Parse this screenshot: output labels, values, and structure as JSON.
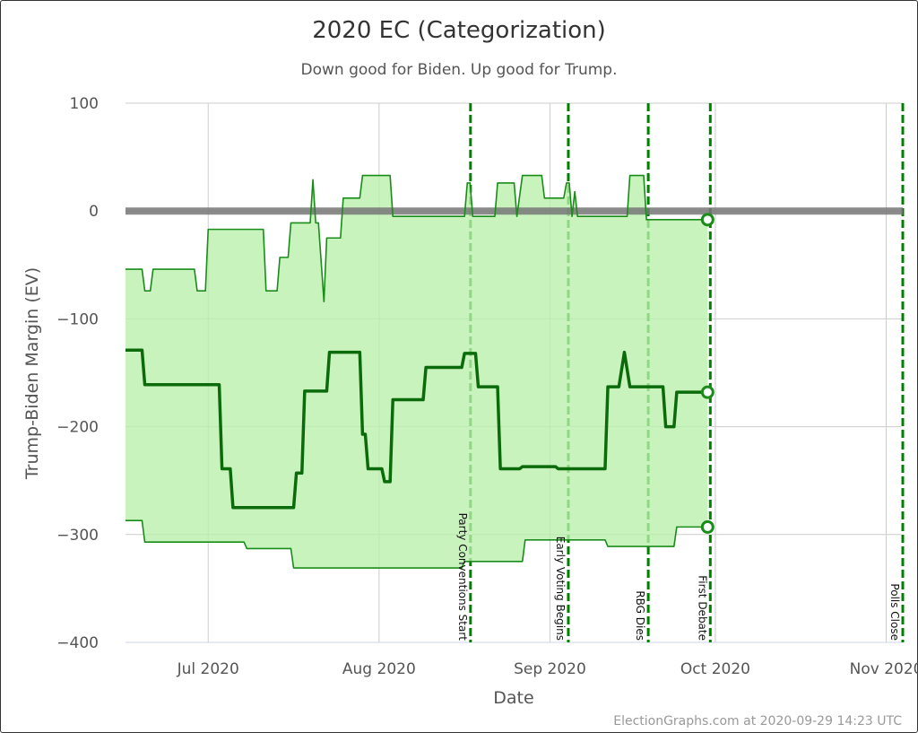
{
  "chart_data": {
    "type": "area",
    "title": "2020 EC (Categorization)",
    "subtitle": "Down good for Biden. Up good for Trump.",
    "xlabel": "Date",
    "ylabel": "Trump-Biden Margin (EV)",
    "credit": "ElectionGraphs.com at 2020-09-29 14:23 UTC",
    "xlim": [
      "2020-06-16",
      "2020-11-04"
    ],
    "ylim": [
      -400,
      100
    ],
    "grid": true,
    "x_ticks": [
      {
        "date": "2020-07-01",
        "label": "Jul 2020"
      },
      {
        "date": "2020-08-01",
        "label": "Aug 2020"
      },
      {
        "date": "2020-09-01",
        "label": "Sep 2020"
      },
      {
        "date": "2020-10-01",
        "label": "Oct 2020"
      },
      {
        "date": "2020-11-01",
        "label": "Nov 2020"
      }
    ],
    "y_ticks": [
      {
        "value": 100,
        "label": "100"
      },
      {
        "value": 0,
        "label": "0"
      },
      {
        "value": -100,
        "label": "−100"
      },
      {
        "value": -200,
        "label": "−200"
      },
      {
        "value": -300,
        "label": "−300"
      },
      {
        "value": -400,
        "label": "−400"
      }
    ],
    "reference_line": 0,
    "colors": {
      "fill": "#b8f0aa",
      "line": "#1a8c1a",
      "center": "#0b6b0b",
      "event": "#008000",
      "zero": "#777777",
      "grid": "#cccccc"
    },
    "events": [
      {
        "date": "2020-08-17T14:00",
        "label": "Party Conventions Start"
      },
      {
        "date": "2020-09-04T08:00",
        "label": "Early Voting Begins"
      },
      {
        "date": "2020-09-18T20:00",
        "label": "RBG Dies"
      },
      {
        "date": "2020-09-30T02:00",
        "label": "First Debate"
      },
      {
        "date": "2020-11-04",
        "label": "Polls Close"
      }
    ],
    "series": [
      {
        "role": "upper",
        "points": [
          [
            "2020-06-16",
            -54
          ],
          [
            "2020-06-19",
            -54
          ],
          [
            "2020-06-19T12:00",
            -74
          ],
          [
            "2020-06-20T12:00",
            -74
          ],
          [
            "2020-06-21",
            -54
          ],
          [
            "2020-06-28T12:00",
            -54
          ],
          [
            "2020-06-29",
            -74
          ],
          [
            "2020-06-30T12:00",
            -74
          ],
          [
            "2020-07-01",
            -17
          ],
          [
            "2020-07-11",
            -17
          ],
          [
            "2020-07-11T12:00",
            -74
          ],
          [
            "2020-07-13T12:00",
            -74
          ],
          [
            "2020-07-14",
            -43
          ],
          [
            "2020-07-15T12:00",
            -43
          ],
          [
            "2020-07-16",
            -11
          ],
          [
            "2020-07-19T12:00",
            -11
          ],
          [
            "2020-07-20",
            29
          ],
          [
            "2020-07-20T12:00",
            -11
          ],
          [
            "2020-07-21",
            -11
          ],
          [
            "2020-07-22",
            -84
          ],
          [
            "2020-07-22T12:00",
            -25
          ],
          [
            "2020-07-25",
            -25
          ],
          [
            "2020-07-25T12:00",
            12
          ],
          [
            "2020-07-28T12:00",
            12
          ],
          [
            "2020-07-29",
            33
          ],
          [
            "2020-08-03",
            33
          ],
          [
            "2020-08-03T12:00",
            -5
          ],
          [
            "2020-08-16T12:00",
            -5
          ],
          [
            "2020-08-17",
            26
          ],
          [
            "2020-08-17T12:00",
            26
          ],
          [
            "2020-08-18",
            -5
          ],
          [
            "2020-08-22",
            -5
          ],
          [
            "2020-08-22T12:00",
            26
          ],
          [
            "2020-08-25T12:00",
            26
          ],
          [
            "2020-08-26",
            -5
          ],
          [
            "2020-08-27",
            33
          ],
          [
            "2020-08-30T12:00",
            33
          ],
          [
            "2020-08-31",
            12
          ],
          [
            "2020-09-03T12:00",
            12
          ],
          [
            "2020-09-04",
            26
          ],
          [
            "2020-09-04T12:00",
            26
          ],
          [
            "2020-09-05",
            -5
          ],
          [
            "2020-09-05T12:00",
            18
          ],
          [
            "2020-09-06",
            -5
          ],
          [
            "2020-09-15",
            -5
          ],
          [
            "2020-09-15T12:00",
            33
          ],
          [
            "2020-09-18",
            33
          ],
          [
            "2020-09-18T12:00",
            -8
          ],
          [
            "2020-09-29T14:23",
            -8
          ]
        ]
      },
      {
        "role": "center",
        "points": [
          [
            "2020-06-16",
            -129
          ],
          [
            "2020-06-19",
            -129
          ],
          [
            "2020-06-19T12:00",
            -161
          ],
          [
            "2020-07-03",
            -161
          ],
          [
            "2020-07-03T12:00",
            -239
          ],
          [
            "2020-07-05",
            -239
          ],
          [
            "2020-07-05T12:00",
            -275
          ],
          [
            "2020-07-16T12:00",
            -275
          ],
          [
            "2020-07-17",
            -243
          ],
          [
            "2020-07-18",
            -243
          ],
          [
            "2020-07-18T12:00",
            -167
          ],
          [
            "2020-07-22T12:00",
            -167
          ],
          [
            "2020-07-23",
            -131
          ],
          [
            "2020-07-28T12:00",
            -131
          ],
          [
            "2020-07-29",
            -207
          ],
          [
            "2020-07-29T12:00",
            -207
          ],
          [
            "2020-07-30",
            -239
          ],
          [
            "2020-08-01T12:00",
            -239
          ],
          [
            "2020-08-02",
            -251
          ],
          [
            "2020-08-03",
            -251
          ],
          [
            "2020-08-03T12:00",
            -175
          ],
          [
            "2020-08-09",
            -175
          ],
          [
            "2020-08-09T12:00",
            -145
          ],
          [
            "2020-08-16",
            -145
          ],
          [
            "2020-08-16T12:00",
            -132
          ],
          [
            "2020-08-18T12:00",
            -132
          ],
          [
            "2020-08-19",
            -163
          ],
          [
            "2020-08-22T12:00",
            -163
          ],
          [
            "2020-08-23",
            -239
          ],
          [
            "2020-08-26T12:00",
            -239
          ],
          [
            "2020-08-27",
            -237
          ],
          [
            "2020-09-02",
            -237
          ],
          [
            "2020-09-02T12:00",
            -239
          ],
          [
            "2020-09-11",
            -239
          ],
          [
            "2020-09-11T12:00",
            -163
          ],
          [
            "2020-09-13T12:00",
            -163
          ],
          [
            "2020-09-14T12:00",
            -131
          ],
          [
            "2020-09-15T12:00",
            -163
          ],
          [
            "2020-09-21T12:00",
            -163
          ],
          [
            "2020-09-22",
            -200
          ],
          [
            "2020-09-23T12:00",
            -200
          ],
          [
            "2020-09-24",
            -168
          ],
          [
            "2020-09-29T14:23",
            -168
          ]
        ]
      },
      {
        "role": "lower",
        "points": [
          [
            "2020-06-16",
            -287
          ],
          [
            "2020-06-19",
            -287
          ],
          [
            "2020-06-19T12:00",
            -307
          ],
          [
            "2020-07-07T12:00",
            -307
          ],
          [
            "2020-07-08",
            -313
          ],
          [
            "2020-07-16",
            -313
          ],
          [
            "2020-07-16T12:00",
            -331
          ],
          [
            "2020-08-16",
            -331
          ],
          [
            "2020-08-16T12:00",
            -325
          ],
          [
            "2020-08-27",
            -325
          ],
          [
            "2020-08-27T12:00",
            -305
          ],
          [
            "2020-09-11",
            -305
          ],
          [
            "2020-09-11T12:00",
            -311
          ],
          [
            "2020-09-23T12:00",
            -311
          ],
          [
            "2020-09-24",
            -293
          ],
          [
            "2020-09-29T14:23",
            -293
          ]
        ]
      }
    ]
  }
}
